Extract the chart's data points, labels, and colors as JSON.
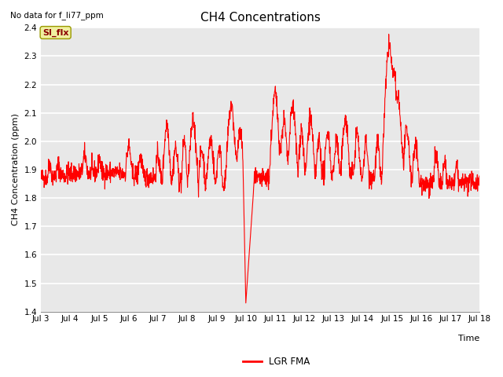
{
  "title": "CH4 Concentrations",
  "xlabel": "Time",
  "ylabel": "CH4 Concentration (ppm)",
  "ylim": [
    1.4,
    2.4
  ],
  "yticks": [
    1.4,
    1.5,
    1.6,
    1.7,
    1.8,
    1.9,
    2.0,
    2.1,
    2.2,
    2.3,
    2.4
  ],
  "xtick_labels": [
    "Jul 3",
    "Jul 4",
    "Jul 5",
    "Jul 6",
    "Jul 7",
    "Jul 8",
    "Jul 9",
    "Jul 10",
    "Jul 11",
    "Jul 12",
    "Jul 13",
    "Jul 14",
    "Jul 15",
    "Jul 16",
    "Jul 17",
    "Jul 18"
  ],
  "line_color": "#ff0000",
  "line_width": 0.8,
  "plot_bg_color": "#e8e8e8",
  "top_left_text": "No data for f_li77_ppm",
  "si_flx_label": "SI_flx",
  "legend_label": "LGR FMA",
  "title_fontsize": 11,
  "axis_fontsize": 8,
  "tick_fontsize": 7.5
}
